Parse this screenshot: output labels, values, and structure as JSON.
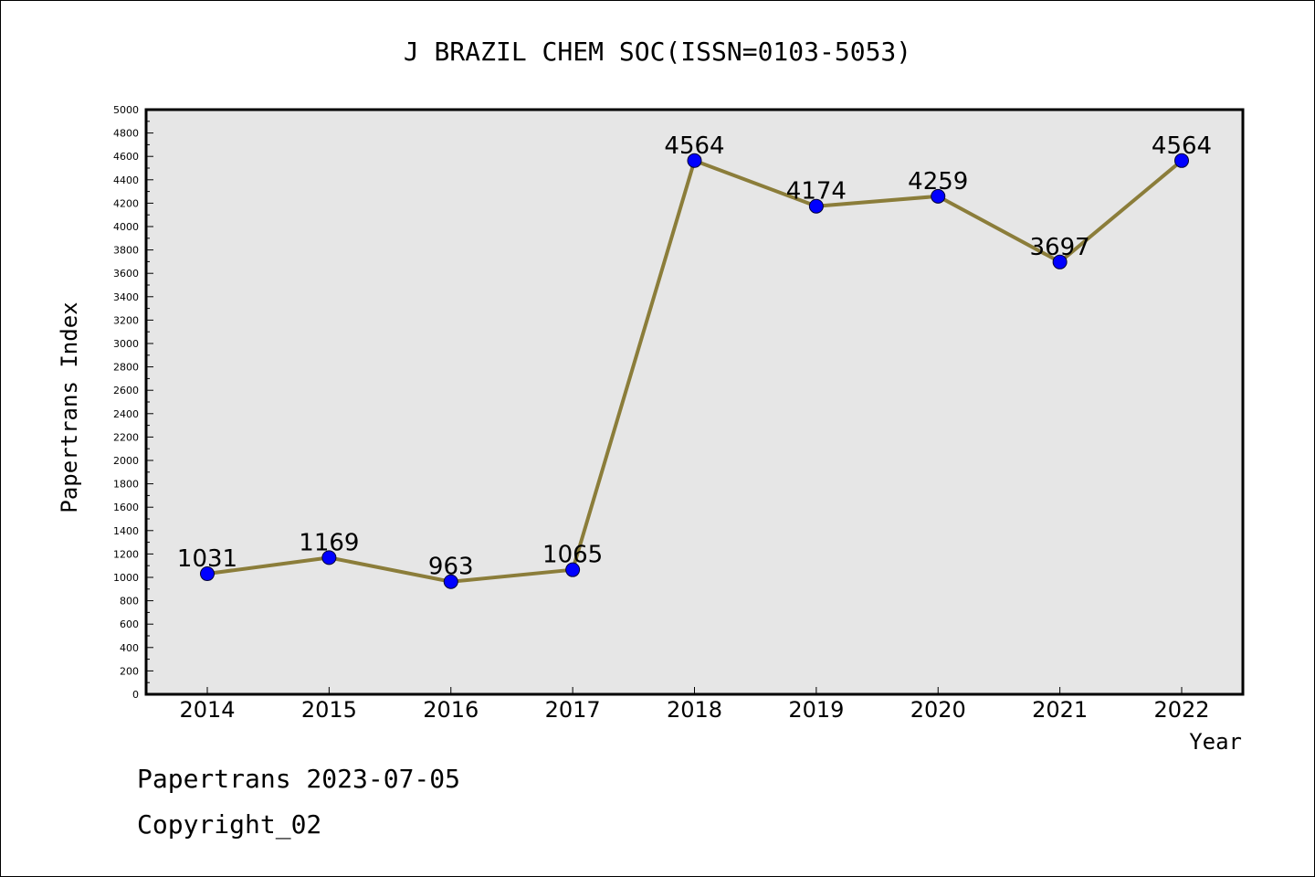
{
  "chart_data": {
    "type": "line",
    "title": "J BRAZIL CHEM SOC(ISSN=0103-5053)",
    "xlabel": "Year",
    "ylabel": "Papertrans Index",
    "categories": [
      "2014",
      "2015",
      "2016",
      "2017",
      "2018",
      "2019",
      "2020",
      "2021",
      "2022"
    ],
    "series": [
      {
        "values": [
          1031,
          1169,
          963,
          1065,
          4564,
          4174,
          4259,
          3697,
          4564
        ],
        "data_labels": [
          "1031",
          "1169",
          "963",
          "1065",
          "4564",
          "4174",
          "4259",
          "3697",
          "4564"
        ]
      }
    ],
    "ylim": [
      0,
      5000
    ],
    "yticks": [
      0,
      200,
      400,
      600,
      800,
      1000,
      1200,
      1400,
      1600,
      1800,
      2000,
      2200,
      2400,
      2600,
      2800,
      3000,
      3200,
      3400,
      3600,
      3800,
      4000,
      4200,
      4400,
      4600,
      4800,
      5000
    ],
    "grid": false,
    "colors": {
      "plot_background": "#e6e6e6",
      "line": "#8b7d3a",
      "marker": "#0000ff"
    }
  },
  "footer": {
    "line1": "Papertrans 2023-07-05",
    "line2": "Copyright_02"
  }
}
